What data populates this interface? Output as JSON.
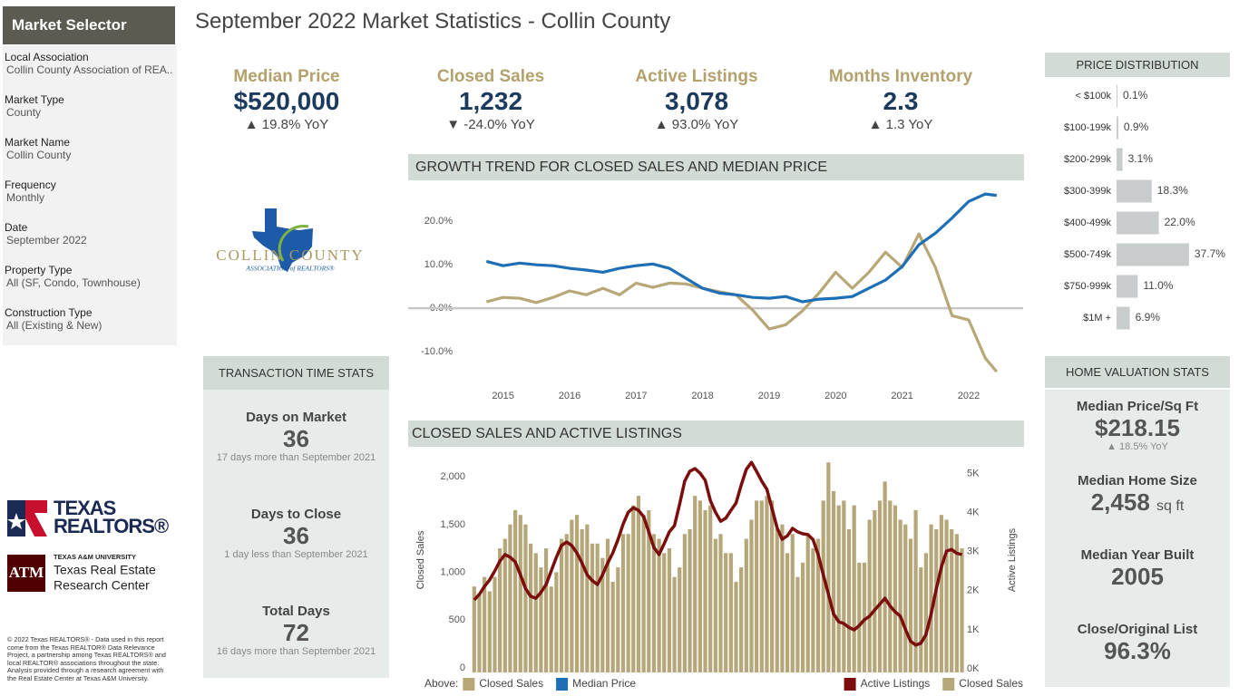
{
  "header": {
    "title": "September 2022 Market Statistics - Collin County"
  },
  "sidebar": {
    "title": "Market Selector",
    "filters": [
      {
        "label": "Local Association",
        "value": "Collin County Association of REA.."
      },
      {
        "label": "Market Type",
        "value": "County"
      },
      {
        "label": "Market Name",
        "value": "Collin County"
      },
      {
        "label": "Frequency",
        "value": "Monthly"
      },
      {
        "label": "Date",
        "value": "September 2022"
      },
      {
        "label": "Property Type",
        "value": "All (SF, Condo, Townhouse)"
      },
      {
        "label": "Construction Type",
        "value": "All (Existing & New)"
      }
    ]
  },
  "kpis": [
    {
      "label": "Median Price",
      "value": "$520,000",
      "change": "▲ 19.8% YoY"
    },
    {
      "label": "Closed Sales",
      "value": "1,232",
      "change": "▼ -24.0% YoY"
    },
    {
      "label": "Active Listings",
      "value": "3,078",
      "change": "▲ 93.0% YoY"
    },
    {
      "label": "Months Inventory",
      "value": 2.3,
      "change": "▲ 1.3 YoY"
    }
  ],
  "logos": {
    "collin": {
      "name": "COLLIN COUNTY",
      "sub": "ASSOCIATION of REALTORS®"
    },
    "texas_realtors": {
      "line1": "TEXAS",
      "line2": "REALTORS®"
    },
    "tamu": {
      "mark": "ATM",
      "line1": "TEXAS A&M UNIVERSITY",
      "line2": "Texas Real Estate",
      "line3": "Research Center"
    }
  },
  "footer": "© 2022 Texas REALTORS® - Data used in this report come from the Texas REALTOR® Data Relevance Project, a partnership among Texas REALTORS® and local REALTOR® associations throughout the state. Analysis provided through a research agreement with the Real Estate Center at Texas A&M University.",
  "transaction_stats": {
    "title": "TRANSACTION TIME STATS",
    "items": [
      {
        "label": "Days on Market",
        "value": 36,
        "note": "17 days more than September 2021"
      },
      {
        "label": "Days to Close",
        "value": 36,
        "note": "1 day less than September 2021"
      },
      {
        "label": "Total Days",
        "value": 72,
        "note": "16 days more than September 2021"
      }
    ]
  },
  "valuation_stats": {
    "title": "HOME VALUATION STATS",
    "items": [
      {
        "label": "Median Price/Sq Ft",
        "value": "$218.15",
        "change": "▲ 18.5% YoY"
      },
      {
        "label": "Median Home Size",
        "value": "2,458",
        "unit": "sq ft"
      },
      {
        "label": "Median Year Built",
        "value": 2005
      },
      {
        "label": "Close/Original List",
        "value": "96.3%"
      }
    ]
  },
  "chart_data": [
    {
      "type": "line",
      "title": "GROWTH TREND FOR CLOSED SALES AND MEDIAN PRICE",
      "x": [
        2014.75,
        2015,
        2015.25,
        2015.5,
        2015.75,
        2016,
        2016.25,
        2016.5,
        2016.75,
        2017,
        2017.25,
        2017.5,
        2017.75,
        2018,
        2018.25,
        2018.5,
        2018.75,
        2019,
        2019.25,
        2019.5,
        2019.75,
        2020,
        2020.25,
        2020.5,
        2020.75,
        2021,
        2021.25,
        2021.5,
        2021.75,
        2022,
        2022.25,
        2022.42
      ],
      "series": [
        {
          "name": "Closed Sales",
          "color": "#b8a878",
          "values": [
            1.5,
            2.5,
            2.3,
            1.3,
            2.5,
            4.0,
            3.1,
            4.6,
            3.1,
            5.8,
            4.8,
            5.8,
            5.6,
            4.6,
            3.8,
            3.1,
            -0.4,
            -4.8,
            -3.8,
            -0.6,
            3.5,
            8.3,
            4.6,
            8.3,
            12.9,
            9.4,
            17.1,
            9.4,
            -1.7,
            -2.7,
            -11.5,
            -14.6
          ]
        },
        {
          "name": "Median Price",
          "color": "#1f6fb6",
          "values": [
            10.8,
            9.8,
            10.4,
            10.0,
            9.8,
            9.2,
            8.8,
            8.3,
            9.2,
            9.8,
            10.2,
            9.2,
            6.9,
            4.6,
            3.5,
            3.1,
            2.5,
            2.3,
            2.7,
            1.5,
            2.1,
            2.3,
            2.7,
            4.6,
            6.5,
            9.6,
            14.6,
            17.3,
            20.8,
            24.6,
            26.3,
            26.0
          ]
        }
      ],
      "xlim": [
        2014.5,
        2022.75
      ],
      "xticks": [
        2015,
        2016,
        2017,
        2018,
        2019,
        2020,
        2021,
        2022
      ],
      "ylim": [
        -15,
        28
      ],
      "yticks": [
        {
          "value": -10,
          "label": "-10.0%"
        },
        {
          "value": 0,
          "label": "0.0%"
        },
        {
          "value": 10,
          "label": "10.0%"
        },
        {
          "value": 20,
          "label": "20.0%"
        }
      ],
      "zero_line": true,
      "legend_title": "Above:",
      "legend": "bottom-left"
    },
    {
      "type": "bar-line",
      "title": "CLOSED SALES AND ACTIVE LISTINGS",
      "ylabel": "Closed Sales",
      "y2label": "Active Listings",
      "series": [
        {
          "name": "Active Listings",
          "type": "line",
          "axis": "y2",
          "color": "#7b0d0d",
          "values": [
            1860,
            2000,
            2200,
            2370,
            2600,
            2850,
            3020,
            2950,
            2830,
            2500,
            2150,
            1950,
            1900,
            2050,
            2250,
            2600,
            2950,
            3250,
            3340,
            3250,
            3060,
            2800,
            2500,
            2350,
            2250,
            2500,
            2800,
            3060,
            3400,
            3800,
            4100,
            4220,
            4150,
            3990,
            3600,
            3200,
            3020,
            3300,
            3600,
            3760,
            4300,
            4900,
            5150,
            5220,
            5100,
            4920,
            4400,
            4100,
            3870,
            3950,
            4150,
            4340,
            4800,
            5200,
            5380,
            5150,
            4900,
            4690,
            4200,
            3700,
            3410,
            3500,
            3690,
            3600,
            3550,
            3530,
            3400,
            3020,
            2500,
            2000,
            1500,
            1300,
            1250,
            1150,
            1090,
            1200,
            1350,
            1440,
            1600,
            1750,
            1900,
            1700,
            1550,
            1440,
            1100,
            800,
            700,
            750,
            970,
            1500,
            2130,
            2700,
            3110,
            3150,
            3050,
            3020
          ]
        },
        {
          "name": "Closed Sales",
          "type": "bar",
          "color": "#b5a779",
          "values": [
            900,
            820,
            1000,
            850,
            1000,
            1300,
            1400,
            1550,
            1700,
            1650,
            1550,
            1350,
            1250,
            1100,
            1300,
            900,
            1050,
            1400,
            1450,
            1600,
            1650,
            1500,
            1550,
            1350,
            1350,
            1200,
            1400,
            950,
            1100,
            1450,
            1450,
            1750,
            1850,
            1650,
            1700,
            1450,
            1400,
            1250,
            1300,
            1000,
            1100,
            1450,
            1500,
            1850,
            1800,
            1700,
            1750,
            1400,
            1450,
            1250,
            1250,
            950,
            1100,
            1400,
            1600,
            1800,
            1800,
            1850,
            1800,
            1500,
            1550,
            1250,
            1450,
            1000,
            1150,
            1450,
            1300,
            1400,
            1800,
            2200,
            1900,
            1750,
            1800,
            1500,
            1750,
            1150,
            1150,
            1600,
            1700,
            1800,
            2000,
            1800,
            1750,
            1600,
            1550,
            1400,
            1700,
            1100,
            1250,
            1550,
            1500,
            1650,
            1600,
            1500,
            1450,
            1300
          ]
        }
      ],
      "ylim": [
        0,
        2250
      ],
      "yticks": [
        0,
        500,
        {
          "value": 1000,
          "label": "1,000"
        },
        {
          "value": 1500,
          "label": "1,500"
        },
        {
          "value": 2000,
          "label": "2,000"
        }
      ],
      "y2lim": [
        0,
        5500
      ],
      "y2ticks": [
        {
          "value": 0,
          "label": "0K"
        },
        {
          "value": 1000,
          "label": "1K"
        },
        {
          "value": 2000,
          "label": "2K"
        },
        {
          "value": 3000,
          "label": "3K"
        },
        {
          "value": 4000,
          "label": "4K"
        },
        {
          "value": 5000,
          "label": "5K"
        }
      ],
      "legend": "bottom-right"
    },
    {
      "type": "hbar",
      "title": "PRICE DISTRIBUTION",
      "categories": [
        "< $100k",
        "$100-199k",
        "$200-299k",
        "$300-399k",
        "$400-499k",
        "$500-749k",
        "$750-999k",
        "$1M +"
      ],
      "values": [
        0.1,
        0.9,
        3.1,
        18.3,
        22.0,
        37.7,
        11.0,
        6.9
      ],
      "value_labels": [
        "0.1%",
        "0.9%",
        "3.1%",
        "18.3%",
        "22.0%",
        "37.7%",
        "11.0%",
        "6.9%"
      ],
      "color": "#c9cccd"
    }
  ]
}
